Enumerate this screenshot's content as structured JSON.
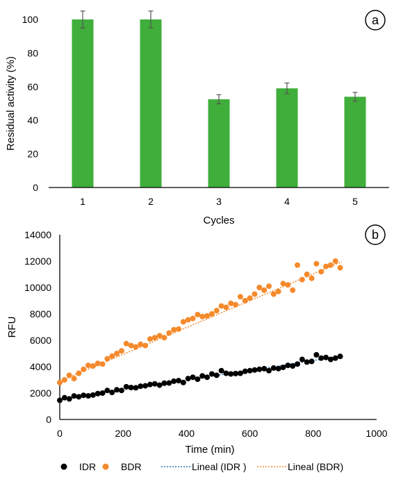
{
  "chart_data": [
    {
      "type": "bar",
      "panel_label": "a",
      "categories": [
        "1",
        "2",
        "3",
        "4",
        "5"
      ],
      "values": [
        100,
        100,
        52.5,
        59,
        54
      ],
      "errors": [
        5,
        5,
        2.7,
        3.2,
        2.6
      ],
      "xlabel": "Cycles",
      "ylabel": "Residual activity (%)",
      "ylim": [
        0,
        100
      ],
      "yticks": [
        "0",
        "20",
        "40",
        "60",
        "80",
        "100"
      ],
      "bar_color": "#3fae3a",
      "grid": false
    },
    {
      "type": "scatter",
      "panel_label": "b",
      "xlabel": "Time (min)",
      "ylabel": "RFU",
      "xlim": [
        0,
        1000
      ],
      "ylim": [
        0,
        14000
      ],
      "xticks": [
        "0",
        "200",
        "400",
        "600",
        "800",
        "1000"
      ],
      "yticks": [
        "0",
        "2000",
        "4000",
        "6000",
        "8000",
        "10000",
        "12000",
        "14000"
      ],
      "grid": false,
      "legend_position": "bottom",
      "series": [
        {
          "name": "IDR",
          "color": "#000000",
          "x": [
            0,
            15,
            30,
            45,
            60,
            75,
            90,
            105,
            120,
            135,
            150,
            165,
            180,
            195,
            210,
            225,
            240,
            255,
            270,
            285,
            300,
            315,
            330,
            345,
            360,
            375,
            390,
            405,
            420,
            435,
            450,
            465,
            480,
            495,
            510,
            525,
            540,
            555,
            570,
            585,
            600,
            615,
            630,
            645,
            660,
            675,
            690,
            705,
            720,
            735,
            750,
            765,
            780,
            795,
            810,
            825,
            840,
            855,
            870,
            885
          ],
          "y": [
            1450,
            1650,
            1560,
            1780,
            1720,
            1830,
            1790,
            1850,
            1960,
            2000,
            2200,
            2050,
            2250,
            2200,
            2480,
            2420,
            2400,
            2520,
            2550,
            2650,
            2700,
            2600,
            2750,
            2760,
            2900,
            2940,
            2800,
            3100,
            3200,
            3050,
            3300,
            3200,
            3450,
            3350,
            3700,
            3500,
            3450,
            3480,
            3500,
            3650,
            3700,
            3750,
            3800,
            3850,
            3700,
            3900,
            3850,
            3950,
            4100,
            4050,
            4200,
            4550,
            4350,
            4400,
            4900,
            4650,
            4700,
            4550,
            4650,
            4780
          ]
        },
        {
          "name": "BDR",
          "color": "#f58a2c",
          "x": [
            0,
            15,
            30,
            45,
            60,
            75,
            90,
            105,
            120,
            135,
            150,
            165,
            180,
            195,
            210,
            225,
            240,
            255,
            270,
            285,
            300,
            315,
            330,
            345,
            360,
            375,
            390,
            405,
            420,
            435,
            450,
            465,
            480,
            495,
            510,
            525,
            540,
            555,
            570,
            585,
            600,
            615,
            630,
            645,
            660,
            675,
            690,
            705,
            720,
            735,
            750,
            765,
            780,
            795,
            810,
            825,
            840,
            855,
            870,
            885
          ],
          "y": [
            2800,
            3000,
            3350,
            3100,
            3500,
            3800,
            4100,
            4050,
            4250,
            4200,
            4600,
            4800,
            5000,
            5200,
            5750,
            5600,
            5500,
            5700,
            5600,
            6100,
            6200,
            6350,
            6200,
            6550,
            6800,
            6850,
            7400,
            7550,
            7650,
            7950,
            7800,
            7850,
            8000,
            8250,
            8600,
            8500,
            8800,
            8700,
            9300,
            9000,
            9200,
            9500,
            10000,
            9800,
            10100,
            9500,
            9700,
            10300,
            10200,
            9800,
            11700,
            10600,
            11000,
            10700,
            11800,
            11200,
            11600,
            11700,
            12000,
            11500
          ]
        },
        {
          "name": "Lineal (IDR )",
          "color": "#2e75b6",
          "type": "trendline",
          "x": [
            0,
            890
          ],
          "y": [
            1500,
            4800
          ]
        },
        {
          "name": "Lineal (BDR)",
          "color": "#f58a2c",
          "type": "trendline",
          "x": [
            0,
            890
          ],
          "y": [
            2900,
            11950
          ]
        }
      ]
    }
  ]
}
